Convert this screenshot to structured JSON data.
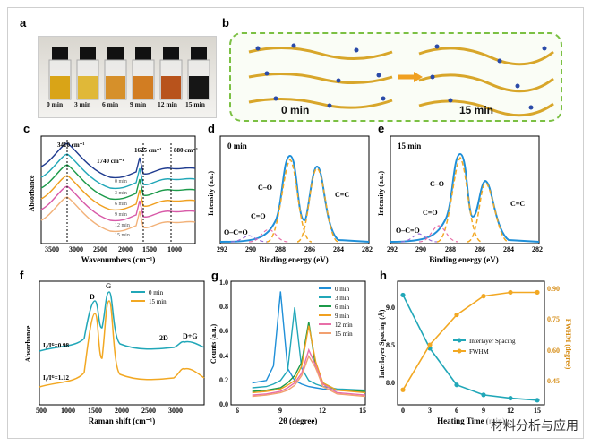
{
  "panels": {
    "a": {
      "label": "a",
      "vials": [
        "0 min",
        "3 min",
        "6 min",
        "9 min",
        "12 min",
        "15 min"
      ],
      "vial_colors": [
        "#d9a417",
        "#e0b838",
        "#d6902a",
        "#d27d22",
        "#b8531c",
        "#161616"
      ]
    },
    "b": {
      "label": "b",
      "left": "0 min",
      "right": "15 min"
    },
    "c": {
      "label": "c",
      "xlabel": "Wavenumbers (cm⁻¹)",
      "ylabel": "Absorbance",
      "peaks": [
        "3410 cm⁻¹",
        "1740 cm⁻¹",
        "1625 cm⁻¹",
        "880 cm⁻¹"
      ],
      "series": [
        "0 min",
        "3 min",
        "6 min",
        "9 min",
        "12 min",
        "15 min"
      ],
      "ticks": [
        "3500",
        "3000",
        "2500",
        "2000",
        "1500",
        "1000"
      ]
    },
    "d": {
      "label": "d",
      "title": "0 min",
      "xlabel": "Binding energy (eV)",
      "ylabel": "Intensity (a.u.)",
      "ticks": [
        "292",
        "290",
        "288",
        "286",
        "284",
        "282"
      ],
      "annotations": [
        "C=C",
        "C–O",
        "C=O",
        "O–C=O"
      ]
    },
    "e": {
      "label": "e",
      "title": "15 min",
      "xlabel": "Binding energy (eV)",
      "ylabel": "Intensity (a.u.)",
      "ticks": [
        "292",
        "290",
        "288",
        "286",
        "284",
        "282"
      ],
      "annotations": [
        "C=C",
        "C–O",
        "C=O",
        "O–C=O"
      ]
    },
    "f": {
      "label": "f",
      "xlabel": "Raman shift (cm⁻¹)",
      "ylabel": "Absorbance",
      "legend": [
        "0 min",
        "15 min"
      ],
      "ratio0": "I₀/Iᴳ=0.98",
      "ratio15": "I₀/Iᴳ=1.12",
      "bands": [
        "D",
        "G",
        "2D",
        "D+G"
      ],
      "ticks": [
        "500",
        "1000",
        "1500",
        "2000",
        "2500",
        "3000"
      ]
    },
    "g": {
      "label": "g",
      "xlabel": "2θ (degree)",
      "ylabel": "Counts (a.u.)",
      "legend": [
        "0 min",
        "3 min",
        "6 min",
        "9 min",
        "12 min",
        "15 min"
      ],
      "yticks": [
        "0.0",
        "0.2",
        "0.4",
        "0.6",
        "0.8",
        "1.0"
      ],
      "xticks": [
        "6",
        "9",
        "12",
        "15"
      ]
    },
    "h": {
      "label": "h",
      "xlabel": "Heating Time (min)",
      "ylabel_left": "Interlayer Spacing (Å)",
      "ylabel_right": "FWHM (degree)",
      "legend": [
        "Interlayer Spacing",
        "FWHM"
      ],
      "yticks_left": [
        "8.0",
        "8.5",
        "9.0"
      ],
      "yticks_right": [
        "0.45",
        "0.60",
        "0.75",
        "0.90"
      ],
      "xticks": [
        "0",
        "3",
        "6",
        "9",
        "12",
        "15"
      ]
    }
  },
  "watermark": "材料分析与应用",
  "chart_data": [
    {
      "type": "line",
      "panel": "g",
      "x": [
        7,
        8,
        8.5,
        9,
        9.5,
        10,
        10.5,
        11,
        11.5,
        12,
        13,
        15
      ],
      "series": [
        {
          "name": "0 min",
          "values": [
            0.18,
            0.2,
            0.32,
            0.93,
            0.3,
            0.2,
            0.17,
            0.15,
            0.14,
            0.13,
            0.12,
            0.12
          ]
        },
        {
          "name": "3 min",
          "values": [
            0.14,
            0.15,
            0.17,
            0.2,
            0.28,
            0.8,
            0.3,
            0.2,
            0.17,
            0.15,
            0.13,
            0.12
          ]
        },
        {
          "name": "6 min",
          "values": [
            0.11,
            0.12,
            0.13,
            0.14,
            0.18,
            0.24,
            0.35,
            0.68,
            0.3,
            0.18,
            0.12,
            0.11
          ]
        },
        {
          "name": "9 min",
          "values": [
            0.1,
            0.11,
            0.12,
            0.13,
            0.16,
            0.2,
            0.32,
            0.65,
            0.35,
            0.18,
            0.12,
            0.1
          ]
        },
        {
          "name": "12 min",
          "values": [
            0.08,
            0.09,
            0.1,
            0.11,
            0.14,
            0.18,
            0.26,
            0.45,
            0.32,
            0.17,
            0.1,
            0.08
          ]
        },
        {
          "name": "15 min",
          "values": [
            0.07,
            0.08,
            0.09,
            0.1,
            0.12,
            0.16,
            0.24,
            0.4,
            0.3,
            0.15,
            0.09,
            0.07
          ]
        }
      ]
    },
    {
      "type": "line",
      "panel": "h",
      "x": [
        0,
        3,
        6,
        9,
        12,
        15
      ],
      "series": [
        {
          "name": "Interlayer Spacing",
          "values": [
            9.4,
            8.6,
            8.05,
            7.9,
            7.85,
            7.82
          ]
        },
        {
          "name": "FWHM",
          "values": [
            0.38,
            0.62,
            0.78,
            0.88,
            0.9,
            0.9
          ]
        }
      ]
    }
  ]
}
